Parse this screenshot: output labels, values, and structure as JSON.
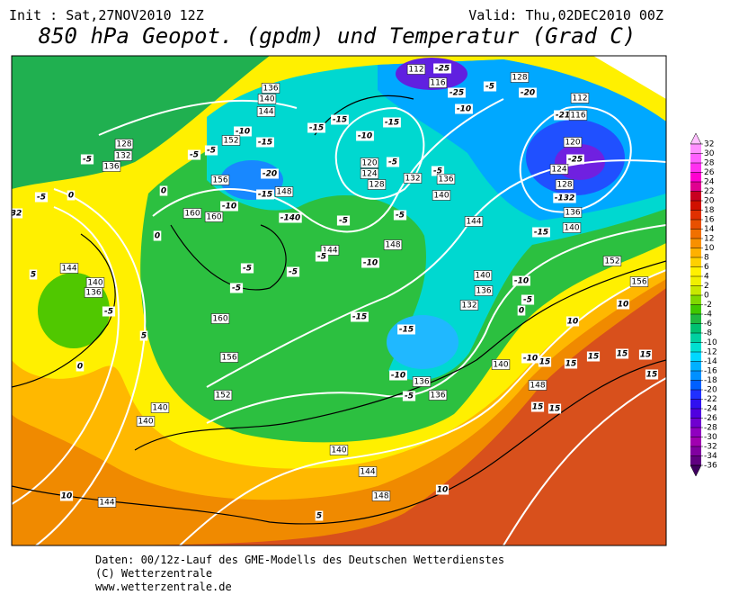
{
  "header": {
    "init": "Init : Sat,27NOV2010 12Z",
    "valid": "Valid: Thu,02DEC2010 00Z",
    "title": "850 hPa Geopot. (gpdm) und Temperatur (Grad C)"
  },
  "legend": {
    "levels": [
      32,
      30,
      28,
      26,
      24,
      22,
      20,
      18,
      16,
      14,
      12,
      10,
      8,
      6,
      4,
      2,
      0,
      -2,
      -4,
      -6,
      -8,
      -10,
      -12,
      -14,
      -16,
      -18,
      -20,
      -22,
      -24,
      -26,
      -28,
      -30,
      -32,
      -34,
      -36
    ],
    "colors": [
      "#ffc0ff",
      "#ff90ff",
      "#ff60ff",
      "#ff30f0",
      "#ff00d0",
      "#e00090",
      "#c80020",
      "#d01000",
      "#e03000",
      "#e85000",
      "#f07000",
      "#f89000",
      "#ffb000",
      "#ffd000",
      "#fff000",
      "#f0f000",
      "#c8e800",
      "#80d800",
      "#40c800",
      "#20b840",
      "#00c070",
      "#00d0a0",
      "#00e0d0",
      "#00d8ff",
      "#00b0ff",
      "#0090ff",
      "#0060ff",
      "#2030ff",
      "#3010f0",
      "#5000e0",
      "#7000d0",
      "#9000c0",
      "#a000b0",
      "#8000a0",
      "#600080",
      "#400060"
    ]
  },
  "map": {
    "contour_labels": [
      "112",
      "-25",
      "116",
      "-25",
      "128",
      "-20",
      "-5",
      "112",
      "-21",
      "116",
      "136",
      "140",
      "144",
      "-10",
      "152",
      "-15",
      "-15",
      "-15",
      "-15",
      "-10",
      "-10",
      "128",
      "132",
      "136",
      "-5",
      "-5",
      "-5",
      "-20",
      "156",
      "-15",
      "148",
      "120",
      "124",
      "128",
      "-5",
      "132",
      "-5",
      "136",
      "140",
      "120",
      "-25",
      "124",
      "128",
      "-132",
      "136",
      "140",
      "-15",
      "144",
      "-140",
      "-5",
      "-5",
      "160",
      "160",
      "-10",
      "144",
      "-5",
      "148",
      "-10",
      "-5",
      "-5",
      "-5",
      "140",
      "-10",
      "136",
      "132",
      "-5",
      "0",
      "160",
      "-15",
      "-15",
      "-10",
      "136",
      "136",
      "-5",
      "140",
      "-10",
      "15",
      "148",
      "15",
      "15",
      "15",
      "15",
      "15",
      "15",
      "156",
      "152",
      "140",
      "140",
      "140",
      "144",
      "148",
      "10",
      "5",
      "10",
      "144",
      "140",
      "136",
      "-5",
      "144",
      "0",
      "5",
      "0",
      "-5",
      "5",
      "32",
      "0",
      "0",
      "152",
      "156",
      "10",
      "10",
      "15"
    ]
  },
  "footer": {
    "lines": [
      "Daten: 00/12z-Lauf des GME-Modells des Deutschen Wetterdienstes",
      "(C) Wetterzentrale",
      "www.wetterzentrale.de"
    ]
  }
}
